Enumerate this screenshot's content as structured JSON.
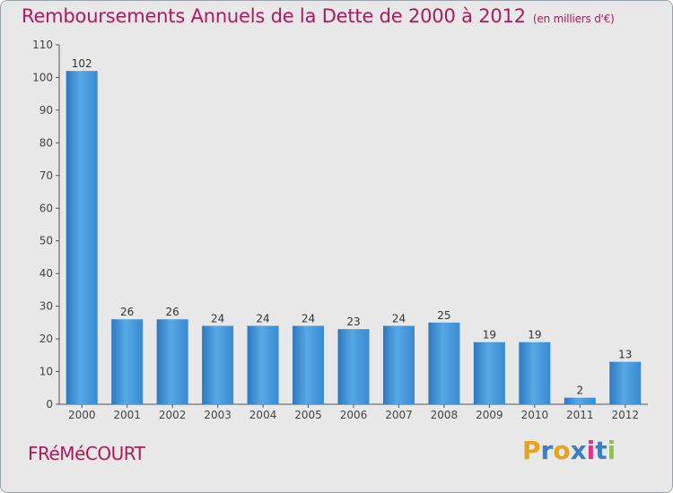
{
  "chart_data": {
    "type": "bar",
    "title": "Remboursements Annuels de la Dette de 2000 à 2012",
    "unit": "(en milliers d'€)",
    "categories": [
      "2000",
      "2001",
      "2002",
      "2003",
      "2004",
      "2005",
      "2006",
      "2007",
      "2008",
      "2009",
      "2010",
      "2011",
      "2012"
    ],
    "values": [
      102,
      26,
      26,
      24,
      24,
      24,
      23,
      24,
      25,
      19,
      19,
      2,
      13
    ],
    "ylim": [
      0,
      110
    ],
    "yticks": [
      0,
      10,
      20,
      30,
      40,
      50,
      60,
      70,
      80,
      90,
      100,
      110
    ],
    "xlabel": "",
    "ylabel": "",
    "grid": false,
    "bar_color": "#3d8fd6"
  },
  "commune": "FRéMéCOURT",
  "brand": {
    "letters": [
      "P",
      "r",
      "o",
      "x",
      "i",
      "t",
      "i"
    ],
    "colors": [
      "#e8a21c",
      "#3b7fc8",
      "#e8a21c",
      "#3b7fc8",
      "#e0338a",
      "#3b7fc8",
      "#8dc63f"
    ]
  },
  "colors": {
    "title": "#b0195a",
    "background": "#e8e8e8"
  }
}
